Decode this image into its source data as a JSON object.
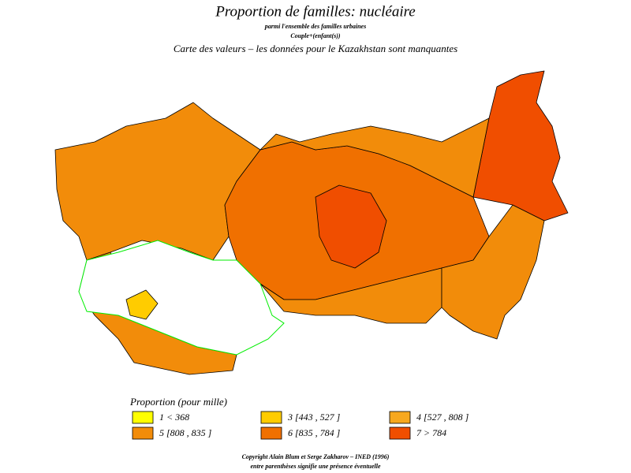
{
  "header": {
    "title": "Proportion de familles: nucléaire",
    "subtitle_lines": [
      "parmi l'ensemble des familles urbaines",
      "Couple+(enfant(s))"
    ],
    "note": "Carte des valeurs – les données pour le Kazakhstan sont manquantes"
  },
  "legend": {
    "title": "Proportion  (pour mille)",
    "entries": [
      {
        "label": "1  <  368",
        "color": "#ffff00"
      },
      {
        "label": "3 [443 , 527 ]",
        "color": "#ffcc00"
      },
      {
        "label": "4 [527 , 808 ]",
        "color": "#f7a81e"
      },
      {
        "label": "5 [808 , 835 ]",
        "color": "#f28c0a"
      },
      {
        "label": "6 [835 , 784 ]",
        "color": "#f07000"
      },
      {
        "label": "7  >  784",
        "color": "#f04e00"
      }
    ]
  },
  "footer": {
    "lines": [
      "Copyright Alain Blum et Serge Zakharov – INED (1996)",
      "entre parenthèses signifie une présence éventuelle"
    ]
  }
}
